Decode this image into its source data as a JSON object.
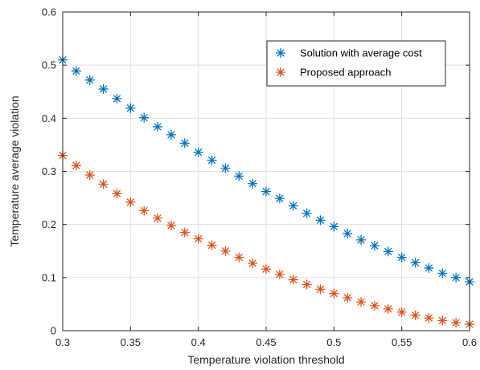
{
  "chart_data": {
    "type": "scatter",
    "title": "",
    "xlabel": "Temperature violation threshold",
    "ylabel": "Temperature average violation",
    "xlim": [
      0.3,
      0.6
    ],
    "ylim": [
      0,
      0.6
    ],
    "xticks": [
      0.3,
      0.35,
      0.4,
      0.45,
      0.5,
      0.55,
      0.6
    ],
    "yticks": [
      0,
      0.1,
      0.2,
      0.3,
      0.4,
      0.5,
      0.6
    ],
    "xtick_labels": [
      "0.3",
      "0.35",
      "0.4",
      "0.45",
      "0.5",
      "0.55",
      "0.6"
    ],
    "ytick_labels": [
      "0",
      "0.1",
      "0.2",
      "0.3",
      "0.4",
      "0.5",
      "0.6"
    ],
    "grid": true,
    "legend_position": "top-right",
    "marker": "asterisk",
    "x": [
      0.3,
      0.31,
      0.32,
      0.33,
      0.34,
      0.35,
      0.36,
      0.37,
      0.38,
      0.39,
      0.4,
      0.41,
      0.42,
      0.43,
      0.44,
      0.45,
      0.46,
      0.47,
      0.48,
      0.49,
      0.5,
      0.51,
      0.52,
      0.53,
      0.54,
      0.55,
      0.56,
      0.57,
      0.58,
      0.59,
      0.6
    ],
    "series": [
      {
        "name": "Solution with average cost",
        "color": "#0072BD",
        "values": [
          0.51,
          0.489,
          0.472,
          0.455,
          0.437,
          0.419,
          0.401,
          0.384,
          0.369,
          0.353,
          0.336,
          0.321,
          0.306,
          0.291,
          0.277,
          0.262,
          0.249,
          0.235,
          0.221,
          0.208,
          0.196,
          0.183,
          0.171,
          0.16,
          0.149,
          0.138,
          0.128,
          0.118,
          0.108,
          0.1,
          0.092
        ]
      },
      {
        "name": "Proposed approach",
        "color": "#D95319",
        "values": [
          0.33,
          0.311,
          0.293,
          0.276,
          0.258,
          0.242,
          0.226,
          0.212,
          0.198,
          0.185,
          0.173,
          0.161,
          0.15,
          0.138,
          0.127,
          0.116,
          0.106,
          0.096,
          0.087,
          0.078,
          0.07,
          0.062,
          0.054,
          0.047,
          0.041,
          0.035,
          0.029,
          0.024,
          0.019,
          0.015,
          0.012
        ]
      }
    ]
  }
}
